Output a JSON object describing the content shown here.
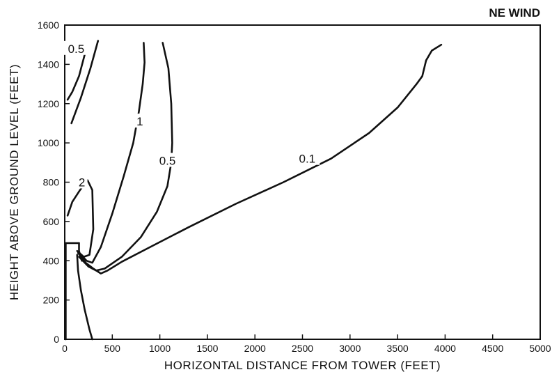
{
  "chart_data": {
    "type": "line",
    "title": "",
    "annotation": "NE WIND",
    "xlabel": "HORIZONTAL DISTANCE FROM TOWER (FEET)",
    "ylabel": "HEIGHT ABOVE GROUND LEVEL (FEET)",
    "xlim": [
      0,
      5000
    ],
    "ylim": [
      0,
      1600
    ],
    "x_ticks": [
      "0",
      "500",
      "1000",
      "1500",
      "2000",
      "2500",
      "3000",
      "3500",
      "4000",
      "4500",
      "5000"
    ],
    "y_ticks": [
      "0",
      "200",
      "400",
      "600",
      "800",
      "1000",
      "1200",
      "1400",
      "1600"
    ],
    "grid": false,
    "contours": [
      {
        "label": "0.1",
        "label_at": [
          2550,
          920
        ],
        "points": [
          [
            140,
            440
          ],
          [
            220,
            390
          ],
          [
            300,
            360
          ],
          [
            380,
            335
          ],
          [
            450,
            350
          ],
          [
            600,
            395
          ],
          [
            900,
            470
          ],
          [
            1300,
            570
          ],
          [
            1800,
            690
          ],
          [
            2300,
            800
          ],
          [
            2800,
            920
          ],
          [
            3200,
            1050
          ],
          [
            3500,
            1180
          ],
          [
            3700,
            1300
          ],
          [
            3760,
            1340
          ],
          [
            3800,
            1420
          ],
          [
            3860,
            1470
          ],
          [
            3960,
            1500
          ]
        ]
      },
      {
        "label": "0.5",
        "label_at": [
          1080,
          910
        ],
        "points": [
          [
            150,
            420
          ],
          [
            250,
            370
          ],
          [
            330,
            350
          ],
          [
            420,
            360
          ],
          [
            600,
            420
          ],
          [
            800,
            520
          ],
          [
            970,
            650
          ],
          [
            1080,
            780
          ],
          [
            1120,
            900
          ],
          [
            1130,
            1000
          ],
          [
            1120,
            1200
          ],
          [
            1090,
            1380
          ],
          [
            1030,
            1510
          ]
        ]
      },
      {
        "label": "1",
        "label_at": [
          790,
          1110
        ],
        "points": [
          [
            150,
            440
          ],
          [
            230,
            400
          ],
          [
            290,
            390
          ],
          [
            380,
            470
          ],
          [
            500,
            640
          ],
          [
            620,
            830
          ],
          [
            720,
            1000
          ],
          [
            780,
            1160
          ],
          [
            820,
            1300
          ],
          [
            840,
            1410
          ],
          [
            830,
            1510
          ]
        ]
      },
      {
        "label": "2",
        "label_at": [
          180,
          800
        ],
        "points": [
          [
            130,
            450
          ],
          [
            200,
            420
          ],
          [
            260,
            430
          ],
          [
            300,
            560
          ],
          [
            290,
            760
          ],
          [
            240,
            810
          ],
          [
            160,
            760
          ],
          [
            80,
            700
          ],
          [
            30,
            630
          ]
        ]
      },
      {
        "label": "0.5",
        "label_at": [
          120,
          1480
        ],
        "points": [
          [
            30,
            1220
          ],
          [
            80,
            1260
          ],
          [
            150,
            1340
          ],
          [
            210,
            1450
          ]
        ]
      },
      {
        "label": "",
        "label_at": null,
        "points": [
          [
            70,
            1100
          ],
          [
            170,
            1230
          ],
          [
            270,
            1380
          ],
          [
            350,
            1520
          ]
        ]
      },
      {
        "label": "",
        "label_at": null,
        "points": [
          [
            150,
            490
          ],
          [
            10,
            490
          ],
          [
            10,
            0
          ]
        ]
      },
      {
        "label": "",
        "label_at": null,
        "points": [
          [
            150,
            490
          ],
          [
            150,
            450
          ],
          [
            180,
            400
          ]
        ]
      },
      {
        "label": "",
        "label_at": null,
        "points": [
          [
            130,
            430
          ],
          [
            140,
            350
          ],
          [
            170,
            250
          ],
          [
            210,
            150
          ],
          [
            260,
            50
          ],
          [
            290,
            0
          ]
        ]
      }
    ]
  }
}
